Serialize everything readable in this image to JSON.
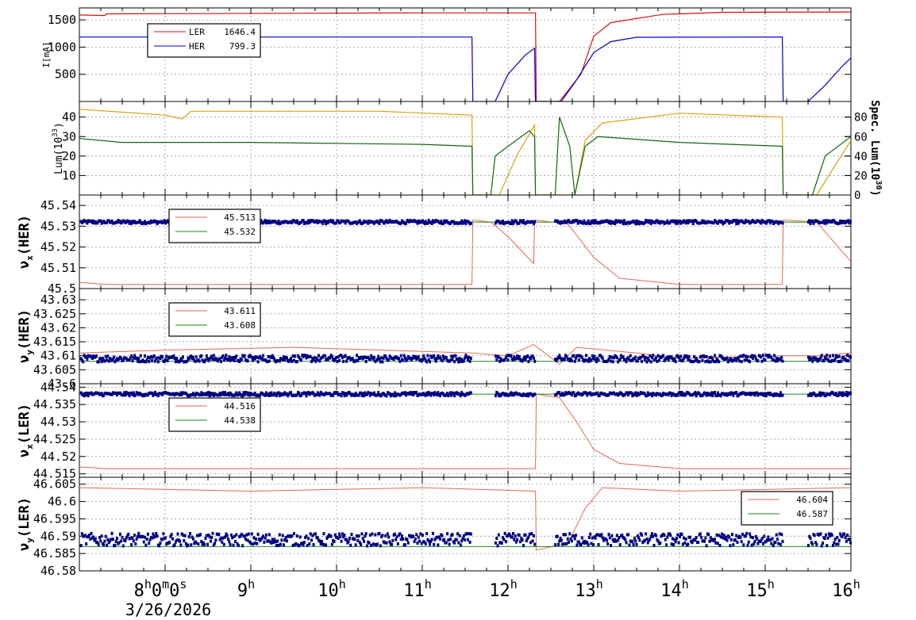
{
  "colors": {
    "red": "#cc1111",
    "blue": "#0000cc",
    "orange": "#e0a010",
    "green": "#116611",
    "salmon": "#e06a50",
    "navy": "#000080",
    "dgreen": "#1a8a1a",
    "grid": "#999999"
  },
  "x_axis": {
    "ticks": [
      {
        "x": 8,
        "main": "8",
        "sup": "h",
        "extra": "0",
        "sup2": "m",
        "extra2": "0",
        "sup3": "s"
      },
      {
        "x": 9,
        "main": "9",
        "sup": "h"
      },
      {
        "x": 10,
        "main": "10",
        "sup": "h"
      },
      {
        "x": 11,
        "main": "11",
        "sup": "h"
      },
      {
        "x": 12,
        "main": "12",
        "sup": "h"
      },
      {
        "x": 13,
        "main": "13",
        "sup": "h"
      },
      {
        "x": 14,
        "main": "14",
        "sup": "h"
      },
      {
        "x": 15,
        "main": "15",
        "sup": "h"
      },
      {
        "x": 16,
        "main": "16",
        "sup": "h"
      }
    ],
    "date": "3/26/2026",
    "range": [
      7.0,
      16.0
    ]
  },
  "chart_data": [
    {
      "type": "line",
      "id": "current",
      "ylabel": "I[mA]",
      "ylim": [
        0,
        1720
      ],
      "yticks": [
        {
          "v": 500,
          "t": "500"
        },
        {
          "v": 1000,
          "t": "1000"
        },
        {
          "v": 1500,
          "t": "1500"
        }
      ],
      "legend": [
        {
          "name": "LER",
          "value": "1646.4",
          "color": "red"
        },
        {
          "name": "HER",
          "value": "799.3",
          "color": "blue"
        }
      ],
      "series": [
        {
          "name": "LER",
          "color": "red",
          "points": [
            [
              7.0,
              1590
            ],
            [
              7.3,
              1580
            ],
            [
              7.31,
              1610
            ],
            [
              8.0,
              1615
            ],
            [
              11.0,
              1630
            ],
            [
              12.32,
              1630
            ],
            [
              12.33,
              0
            ],
            [
              12.6,
              0
            ],
            [
              12.75,
              300
            ],
            [
              12.85,
              500
            ],
            [
              13.0,
              1200
            ],
            [
              13.2,
              1450
            ],
            [
              13.8,
              1600
            ],
            [
              14.5,
              1640
            ],
            [
              16.0,
              1646
            ]
          ]
        },
        {
          "name": "HER",
          "color": "blue",
          "points": [
            [
              7.0,
              1185
            ],
            [
              11.58,
              1185
            ],
            [
              11.59,
              0
            ],
            [
              11.85,
              0
            ],
            [
              12.0,
              500
            ],
            [
              12.2,
              850
            ],
            [
              12.31,
              980
            ],
            [
              12.32,
              0
            ],
            [
              12.62,
              0
            ],
            [
              12.78,
              350
            ],
            [
              13.0,
              900
            ],
            [
              13.2,
              1100
            ],
            [
              13.5,
              1180
            ],
            [
              15.2,
              1185
            ],
            [
              15.21,
              0
            ],
            [
              15.5,
              0
            ],
            [
              15.7,
              300
            ],
            [
              15.9,
              650
            ],
            [
              16.0,
              800
            ]
          ]
        }
      ]
    },
    {
      "type": "line",
      "id": "luminosity",
      "ylabel": "Lum(10^33)",
      "ylim": [
        0,
        48
      ],
      "yticks": [
        {
          "v": 10,
          "t": "10"
        },
        {
          "v": 20,
          "t": "20"
        },
        {
          "v": 30,
          "t": "30"
        },
        {
          "v": 40,
          "t": "40"
        }
      ],
      "ylabel_right": "Spec. Lum(10^30)",
      "ylim_right": [
        0,
        96
      ],
      "yticks_right": [
        {
          "v": 0,
          "t": "0"
        },
        {
          "v": 20,
          "t": "20"
        },
        {
          "v": 40,
          "t": "40"
        },
        {
          "v": 60,
          "t": "60"
        },
        {
          "v": 80,
          "t": "80"
        }
      ],
      "series": [
        {
          "name": "Lum",
          "color": "orange",
          "points": [
            [
              7.0,
              44
            ],
            [
              8.0,
              41
            ],
            [
              8.2,
              39
            ],
            [
              8.3,
              43
            ],
            [
              9.5,
              43
            ],
            [
              10.5,
              43
            ],
            [
              11.58,
              41
            ],
            [
              11.59,
              0
            ],
            [
              11.9,
              0
            ],
            [
              12.1,
              20
            ],
            [
              12.31,
              36
            ],
            [
              12.32,
              0
            ],
            [
              12.78,
              0
            ],
            [
              12.9,
              28
            ],
            [
              13.1,
              37
            ],
            [
              14.0,
              42
            ],
            [
              15.2,
              40
            ],
            [
              15.21,
              0
            ],
            [
              15.6,
              0
            ],
            [
              16.0,
              28
            ]
          ]
        },
        {
          "name": "Spec",
          "color": "green",
          "points": [
            [
              7.0,
              29
            ],
            [
              7.5,
              27
            ],
            [
              9.0,
              27
            ],
            [
              11.0,
              26
            ],
            [
              11.58,
              25
            ],
            [
              11.59,
              0
            ],
            [
              11.8,
              0
            ],
            [
              11.85,
              20
            ],
            [
              12.0,
              25
            ],
            [
              12.25,
              33
            ],
            [
              12.31,
              30
            ],
            [
              12.32,
              0
            ],
            [
              12.55,
              0
            ],
            [
              12.6,
              40
            ],
            [
              12.72,
              25
            ],
            [
              12.78,
              0
            ],
            [
              12.9,
              25
            ],
            [
              13.05,
              30
            ],
            [
              14.0,
              27
            ],
            [
              15.2,
              25
            ],
            [
              15.21,
              0
            ],
            [
              15.55,
              0
            ],
            [
              15.7,
              20
            ],
            [
              16.0,
              30
            ]
          ]
        }
      ]
    },
    {
      "type": "scatter",
      "id": "nux_her",
      "ylabel": "ν_x(HER)",
      "ylim": [
        45.5,
        45.545
      ],
      "yticks": [
        {
          "v": 45.5,
          "t": "45.5"
        },
        {
          "v": 45.51,
          "t": "45.51"
        },
        {
          "v": 45.52,
          "t": "45.52"
        },
        {
          "v": 45.53,
          "t": "45.53"
        },
        {
          "v": 45.54,
          "t": "45.54"
        }
      ],
      "legend": [
        {
          "value": "45.513",
          "color": "salmon"
        },
        {
          "value": "45.532",
          "color": "dgreen"
        }
      ],
      "setting": {
        "color": "salmon",
        "points": [
          [
            7.0,
            45.503
          ],
          [
            7.3,
            45.502
          ],
          [
            11.58,
            45.502
          ],
          [
            11.59,
            45.533
          ],
          [
            11.8,
            45.532
          ],
          [
            12.0,
            45.525
          ],
          [
            12.3,
            45.512
          ],
          [
            12.31,
            45.533
          ],
          [
            12.7,
            45.531
          ],
          [
            13.0,
            45.515
          ],
          [
            13.3,
            45.505
          ],
          [
            14.0,
            45.502
          ],
          [
            15.2,
            45.502
          ],
          [
            15.21,
            45.533
          ],
          [
            15.6,
            45.532
          ],
          [
            16.0,
            45.513
          ]
        ]
      },
      "reference": {
        "color": "dgreen",
        "value": 45.532
      },
      "measured": {
        "color": "navy",
        "base": 45.532,
        "noise": 0.0008
      }
    },
    {
      "type": "scatter",
      "id": "nuy_her",
      "ylabel": "ν_y(HER)",
      "ylim": [
        43.6,
        43.634
      ],
      "yticks": [
        {
          "v": 43.6,
          "t": "43.6"
        },
        {
          "v": 43.605,
          "t": "43.605"
        },
        {
          "v": 43.61,
          "t": "43.61"
        },
        {
          "v": 43.615,
          "t": "43.615"
        },
        {
          "v": 43.62,
          "t": "43.62"
        },
        {
          "v": 43.625,
          "t": "43.625"
        },
        {
          "v": 43.63,
          "t": "43.63"
        }
      ],
      "legend": [
        {
          "value": "43.611",
          "color": "salmon"
        },
        {
          "value": "43.608",
          "color": "dgreen"
        }
      ],
      "setting": {
        "color": "salmon",
        "points": [
          [
            7.0,
            43.611
          ],
          [
            8.0,
            43.612
          ],
          [
            9.5,
            43.613
          ],
          [
            11.58,
            43.611
          ],
          [
            12.0,
            43.61
          ],
          [
            12.3,
            43.614
          ],
          [
            12.6,
            43.607
          ],
          [
            12.8,
            43.613
          ],
          [
            13.5,
            43.611
          ],
          [
            14.0,
            43.609
          ],
          [
            15.2,
            43.61
          ],
          [
            15.6,
            43.61
          ],
          [
            16.0,
            43.611
          ]
        ]
      },
      "reference": {
        "color": "dgreen",
        "value": 43.608
      },
      "measured": {
        "color": "navy",
        "base": 43.609,
        "noise": 0.0012
      }
    },
    {
      "type": "scatter",
      "id": "nux_ler",
      "ylabel": "ν_x(LER)",
      "ylim": [
        44.514,
        44.541
      ],
      "yticks": [
        {
          "v": 44.515,
          "t": "44.515"
        },
        {
          "v": 44.52,
          "t": "44.52"
        },
        {
          "v": 44.525,
          "t": "44.525"
        },
        {
          "v": 44.53,
          "t": "44.53"
        },
        {
          "v": 44.535,
          "t": "44.535"
        },
        {
          "v": 44.54,
          "t": "44.54"
        }
      ],
      "legend": [
        {
          "value": "44.516",
          "color": "salmon"
        },
        {
          "value": "44.538",
          "color": "dgreen"
        }
      ],
      "setting": {
        "color": "salmon",
        "points": [
          [
            7.0,
            44.517
          ],
          [
            7.3,
            44.5165
          ],
          [
            12.32,
            44.5165
          ],
          [
            12.33,
            44.538
          ],
          [
            12.6,
            44.537
          ],
          [
            12.8,
            44.53
          ],
          [
            13.0,
            44.522
          ],
          [
            13.3,
            44.518
          ],
          [
            14.0,
            44.5165
          ],
          [
            16.0,
            44.5165
          ]
        ]
      },
      "reference": {
        "color": "dgreen",
        "value": 44.538
      },
      "measured": {
        "color": "navy",
        "base": 44.538,
        "noise": 0.0005
      }
    },
    {
      "type": "scatter",
      "id": "nuy_ler",
      "ylabel": "ν_y(LER)",
      "ylim": [
        44.58,
        46.607
      ],
      "ylim_fix": [
        46.58,
        46.607
      ],
      "yticks": [
        {
          "v": 46.58,
          "t": "46.58"
        },
        {
          "v": 46.585,
          "t": "46.585"
        },
        {
          "v": 46.59,
          "t": "46.59"
        },
        {
          "v": 46.595,
          "t": "46.595"
        },
        {
          "v": 46.6,
          "t": "46.6"
        },
        {
          "v": 46.605,
          "t": "46.605"
        }
      ],
      "legend": [
        {
          "value": "46.604",
          "color": "salmon"
        },
        {
          "value": "46.587",
          "color": "dgreen"
        }
      ],
      "setting": {
        "color": "salmon",
        "points": [
          [
            7.0,
            46.604
          ],
          [
            9.0,
            46.603
          ],
          [
            11.0,
            46.604
          ],
          [
            12.32,
            46.603
          ],
          [
            12.33,
            46.586
          ],
          [
            12.7,
            46.588
          ],
          [
            12.9,
            46.598
          ],
          [
            13.1,
            46.604
          ],
          [
            14.0,
            46.603
          ],
          [
            16.0,
            46.604
          ]
        ]
      },
      "reference": {
        "color": "dgreen",
        "value": 46.587
      },
      "measured": {
        "color": "navy",
        "base": 46.589,
        "noise": 0.0018
      }
    }
  ]
}
